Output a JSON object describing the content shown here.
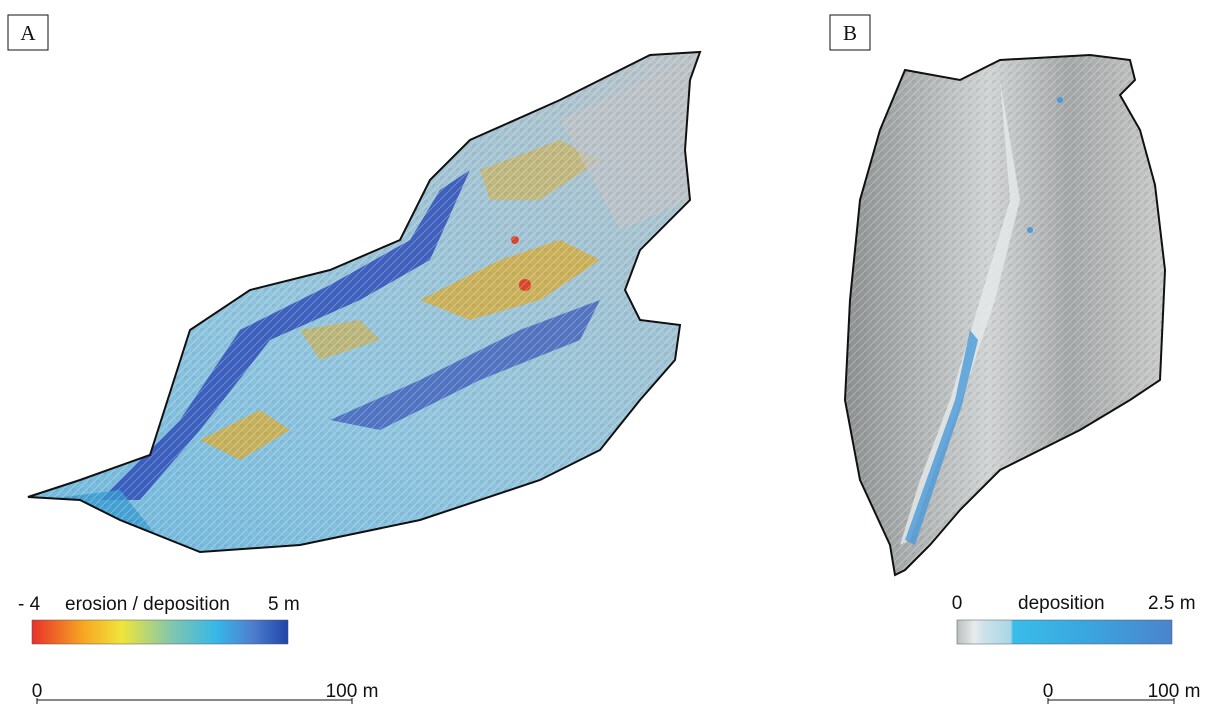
{
  "panels": [
    {
      "label": "A",
      "legend": {
        "min_label": "- 4",
        "title": "erosion / deposition",
        "max_label": "5 m"
      },
      "scale_bar": {
        "start": "0",
        "end": "100 m"
      }
    },
    {
      "label": "B",
      "legend": {
        "min_label": "0",
        "title": "deposition",
        "max_label": "2.5 m"
      },
      "scale_bar": {
        "start": "0",
        "end": "100 m"
      }
    }
  ]
}
